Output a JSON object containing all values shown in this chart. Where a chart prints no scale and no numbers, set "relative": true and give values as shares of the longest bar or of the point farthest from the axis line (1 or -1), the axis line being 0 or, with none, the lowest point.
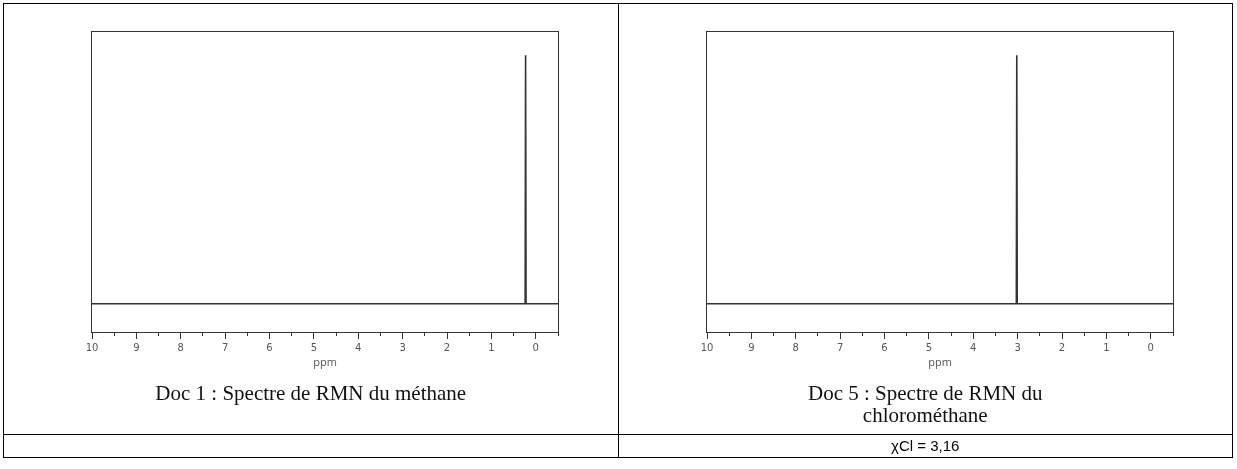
{
  "chart_data": [
    {
      "type": "line",
      "title": "Doc 1 : Spectre de RMN du méthane",
      "xlabel": "ppm",
      "relative": true,
      "color": "#333333",
      "line_style": "solid",
      "marker": "none",
      "x": [
        10,
        0.24,
        0.23,
        0.22,
        -0.5
      ],
      "values": [
        0,
        0,
        1,
        0,
        0
      ],
      "xlim": [
        10,
        -0.5
      ],
      "xticks": [
        10,
        9,
        8,
        7,
        6,
        5,
        4,
        3,
        2,
        1,
        0
      ]
    },
    {
      "type": "line",
      "title": "Doc 5 : Spectre de RMN du chlorométhane",
      "xlabel": "ppm",
      "relative": true,
      "color": "#333333",
      "line_style": "solid",
      "marker": "none",
      "x": [
        10,
        3.03,
        3.02,
        3.01,
        -0.5
      ],
      "values": [
        0,
        0,
        1,
        0,
        0
      ],
      "xlim": [
        10,
        -0.5
      ],
      "xticks": [
        10,
        9,
        8,
        7,
        6,
        5,
        4,
        3,
        2,
        1,
        0
      ],
      "annotations": [
        "χCl = 3,16"
      ]
    }
  ]
}
